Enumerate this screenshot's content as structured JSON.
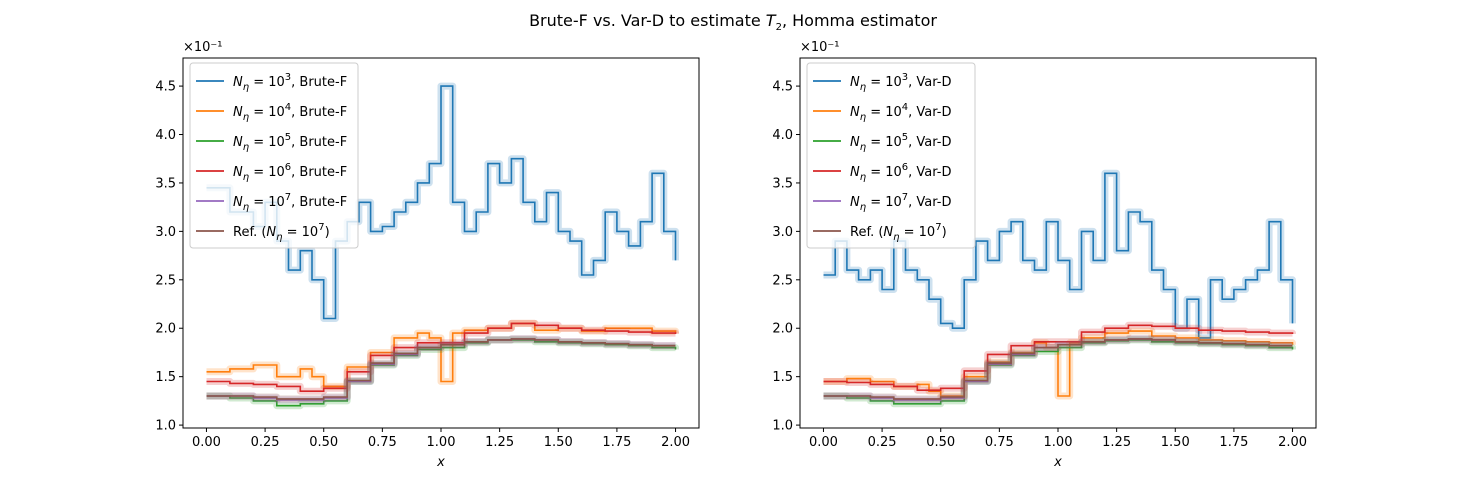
{
  "figure": {
    "title_prefix": "Brute-F vs. Var-D to estimate ",
    "title_var": "T",
    "title_sub": "2",
    "title_suffix": ", Homma estimator"
  },
  "colors": {
    "1e3": "#1f77b4",
    "1e4": "#ff7f0e",
    "1e5": "#2ca02c",
    "1e6": "#d62728",
    "1e7": "#9467bd",
    "ref": "#8c564b"
  },
  "chart_data": [
    {
      "type": "line",
      "xlabel": "x",
      "ylabel": "",
      "offset_text": "×10⁻¹",
      "xlim": [
        -0.1,
        2.1
      ],
      "ylim": [
        0.97,
        4.79
      ],
      "xticks": [
        0.0,
        0.25,
        0.5,
        0.75,
        1.0,
        1.25,
        1.5,
        1.75,
        2.0
      ],
      "xtick_labels": [
        "0.00",
        "0.25",
        "0.50",
        "0.75",
        "1.00",
        "1.25",
        "1.50",
        "1.75",
        "2.00"
      ],
      "yticks": [
        1.0,
        1.5,
        2.0,
        2.5,
        3.0,
        3.5,
        4.0,
        4.5
      ],
      "ytick_labels": [
        "1.0",
        "1.5",
        "2.0",
        "2.5",
        "3.0",
        "3.5",
        "4.0",
        "4.5"
      ],
      "legend_position": "top-left",
      "series": [
        {
          "key": "1e3",
          "legend_pre": "N",
          "legend_sub": "η",
          "legend_mid": " = 10",
          "legend_sup": "3",
          "legend_post": ", Brute-F",
          "color": "#1f77b4",
          "x": [
            0.0,
            0.1,
            0.2,
            0.25,
            0.3,
            0.35,
            0.4,
            0.45,
            0.5,
            0.55,
            0.6,
            0.65,
            0.7,
            0.75,
            0.8,
            0.85,
            0.9,
            0.95,
            1.0,
            1.05,
            1.1,
            1.15,
            1.2,
            1.25,
            1.3,
            1.35,
            1.4,
            1.45,
            1.5,
            1.55,
            1.6,
            1.65,
            1.7,
            1.75,
            1.8,
            1.85,
            1.9,
            1.95,
            2.0
          ],
          "y": [
            3.45,
            3.2,
            3.05,
            3.3,
            2.9,
            2.6,
            2.8,
            2.5,
            2.1,
            2.9,
            3.1,
            3.3,
            3.0,
            3.05,
            3.2,
            3.3,
            3.5,
            3.7,
            4.5,
            3.3,
            3.0,
            3.2,
            3.7,
            3.5,
            3.75,
            3.3,
            3.1,
            3.4,
            3.0,
            2.9,
            2.55,
            2.7,
            3.2,
            3.0,
            2.85,
            3.1,
            3.6,
            3.0,
            2.7
          ]
        },
        {
          "key": "1e4",
          "legend_pre": "N",
          "legend_sub": "η",
          "legend_mid": " = 10",
          "legend_sup": "4",
          "legend_post": ", Brute-F",
          "color": "#ff7f0e",
          "x": [
            0.0,
            0.1,
            0.2,
            0.3,
            0.4,
            0.45,
            0.5,
            0.6,
            0.7,
            0.8,
            0.9,
            0.95,
            1.0,
            1.05,
            1.1,
            1.2,
            1.3,
            1.4,
            1.5,
            1.6,
            1.7,
            1.8,
            1.9,
            2.0
          ],
          "y": [
            1.55,
            1.58,
            1.62,
            1.5,
            1.58,
            1.5,
            1.4,
            1.6,
            1.75,
            1.9,
            1.95,
            1.9,
            1.45,
            1.95,
            1.98,
            2.0,
            2.05,
            1.98,
            2.0,
            1.97,
            2.0,
            2.0,
            1.97,
            1.95
          ]
        },
        {
          "key": "1e5",
          "legend_pre": "N",
          "legend_sub": "η",
          "legend_mid": " = 10",
          "legend_sup": "5",
          "legend_post": ", Brute-F",
          "color": "#2ca02c",
          "x": [
            0.0,
            0.1,
            0.2,
            0.3,
            0.4,
            0.5,
            0.6,
            0.7,
            0.8,
            0.9,
            1.0,
            1.1,
            1.2,
            1.3,
            1.4,
            1.5,
            1.6,
            1.7,
            1.8,
            1.9,
            2.0
          ],
          "y": [
            1.3,
            1.28,
            1.25,
            1.2,
            1.22,
            1.25,
            1.45,
            1.62,
            1.72,
            1.78,
            1.8,
            1.85,
            1.88,
            1.88,
            1.86,
            1.85,
            1.84,
            1.83,
            1.82,
            1.8,
            1.78
          ]
        },
        {
          "key": "1e6",
          "legend_pre": "N",
          "legend_sub": "η",
          "legend_mid": " = 10",
          "legend_sup": "6",
          "legend_post": ", Brute-F",
          "color": "#d62728",
          "x": [
            0.0,
            0.1,
            0.2,
            0.3,
            0.4,
            0.5,
            0.6,
            0.7,
            0.8,
            0.9,
            1.0,
            1.1,
            1.2,
            1.3,
            1.4,
            1.5,
            1.6,
            1.7,
            1.8,
            1.9,
            2.0
          ],
          "y": [
            1.45,
            1.43,
            1.42,
            1.4,
            1.35,
            1.38,
            1.55,
            1.72,
            1.8,
            1.85,
            1.85,
            1.95,
            2.0,
            2.05,
            2.03,
            2.0,
            1.98,
            1.97,
            1.96,
            1.95,
            1.94
          ]
        },
        {
          "key": "1e7",
          "legend_pre": "N",
          "legend_sub": "η",
          "legend_mid": " = 10",
          "legend_sup": "7",
          "legend_post": ", Brute-F",
          "color": "#9467bd",
          "x": [
            0.0,
            0.1,
            0.2,
            0.3,
            0.4,
            0.5,
            0.6,
            0.7,
            0.8,
            0.9,
            1.0,
            1.1,
            1.2,
            1.3,
            1.4,
            1.5,
            1.6,
            1.7,
            1.8,
            1.9,
            2.0
          ],
          "y": [
            1.3,
            1.3,
            1.28,
            1.26,
            1.26,
            1.28,
            1.45,
            1.63,
            1.73,
            1.8,
            1.83,
            1.86,
            1.88,
            1.89,
            1.88,
            1.86,
            1.85,
            1.84,
            1.83,
            1.82,
            1.82
          ]
        },
        {
          "key": "ref",
          "legend_pre": "Ref. (N",
          "legend_sub": "η",
          "legend_mid": " = 10",
          "legend_sup": "7",
          "legend_post": ")",
          "color": "#8c564b",
          "x": [
            0.0,
            0.1,
            0.2,
            0.3,
            0.4,
            0.5,
            0.6,
            0.7,
            0.8,
            0.9,
            1.0,
            1.1,
            1.2,
            1.3,
            1.4,
            1.5,
            1.6,
            1.7,
            1.8,
            1.9,
            2.0
          ],
          "y": [
            1.3,
            1.3,
            1.29,
            1.27,
            1.27,
            1.29,
            1.46,
            1.64,
            1.74,
            1.8,
            1.83,
            1.86,
            1.88,
            1.89,
            1.88,
            1.86,
            1.85,
            1.84,
            1.83,
            1.82,
            1.82
          ]
        }
      ]
    },
    {
      "type": "line",
      "xlabel": "x",
      "ylabel": "",
      "offset_text": "×10⁻¹",
      "xlim": [
        -0.1,
        2.1
      ],
      "ylim": [
        0.97,
        4.79
      ],
      "xticks": [
        0.0,
        0.25,
        0.5,
        0.75,
        1.0,
        1.25,
        1.5,
        1.75,
        2.0
      ],
      "xtick_labels": [
        "0.00",
        "0.25",
        "0.50",
        "0.75",
        "1.00",
        "1.25",
        "1.50",
        "1.75",
        "2.00"
      ],
      "yticks": [
        1.0,
        1.5,
        2.0,
        2.5,
        3.0,
        3.5,
        4.0,
        4.5
      ],
      "ytick_labels": [
        "1.0",
        "1.5",
        "2.0",
        "2.5",
        "3.0",
        "3.5",
        "4.0",
        "4.5"
      ],
      "legend_position": "top-left",
      "series": [
        {
          "key": "1e3",
          "legend_pre": "N",
          "legend_sub": "η",
          "legend_mid": " = 10",
          "legend_sup": "3",
          "legend_post": ", Var-D",
          "color": "#1f77b4",
          "x": [
            0.0,
            0.05,
            0.1,
            0.15,
            0.2,
            0.25,
            0.3,
            0.35,
            0.4,
            0.45,
            0.5,
            0.55,
            0.6,
            0.65,
            0.7,
            0.75,
            0.8,
            0.85,
            0.9,
            0.95,
            1.0,
            1.05,
            1.1,
            1.15,
            1.2,
            1.25,
            1.3,
            1.35,
            1.4,
            1.45,
            1.5,
            1.55,
            1.6,
            1.65,
            1.7,
            1.75,
            1.8,
            1.85,
            1.9,
            1.95,
            2.0
          ],
          "y": [
            2.55,
            2.9,
            2.6,
            2.5,
            2.6,
            2.4,
            2.9,
            2.6,
            2.5,
            2.3,
            2.05,
            2.0,
            2.5,
            2.9,
            2.7,
            3.0,
            3.1,
            2.7,
            2.6,
            3.1,
            2.7,
            2.4,
            3.0,
            2.7,
            3.6,
            2.8,
            3.2,
            3.1,
            2.6,
            2.4,
            2.0,
            2.3,
            1.9,
            2.5,
            2.3,
            2.4,
            2.5,
            2.6,
            3.1,
            2.5,
            2.05
          ]
        },
        {
          "key": "1e4",
          "legend_pre": "N",
          "legend_sub": "η",
          "legend_mid": " = 10",
          "legend_sup": "4",
          "legend_post": ", Var-D",
          "color": "#ff7f0e",
          "x": [
            0.0,
            0.1,
            0.2,
            0.3,
            0.4,
            0.45,
            0.5,
            0.6,
            0.7,
            0.8,
            0.9,
            0.95,
            1.0,
            1.05,
            1.1,
            1.2,
            1.3,
            1.4,
            1.5,
            1.6,
            1.7,
            1.8,
            1.9,
            2.0
          ],
          "y": [
            1.45,
            1.48,
            1.45,
            1.4,
            1.42,
            1.35,
            1.3,
            1.5,
            1.65,
            1.75,
            1.85,
            1.8,
            1.3,
            1.85,
            1.9,
            1.95,
            1.97,
            1.92,
            1.9,
            1.88,
            1.87,
            1.86,
            1.85,
            1.83
          ]
        },
        {
          "key": "1e5",
          "legend_pre": "N",
          "legend_sub": "η",
          "legend_mid": " = 10",
          "legend_sup": "5",
          "legend_post": ", Var-D",
          "color": "#2ca02c",
          "x": [
            0.0,
            0.1,
            0.2,
            0.3,
            0.4,
            0.5,
            0.6,
            0.7,
            0.8,
            0.9,
            1.0,
            1.1,
            1.2,
            1.3,
            1.4,
            1.5,
            1.6,
            1.7,
            1.8,
            1.9,
            2.0
          ],
          "y": [
            1.3,
            1.28,
            1.25,
            1.22,
            1.22,
            1.25,
            1.45,
            1.62,
            1.72,
            1.76,
            1.8,
            1.85,
            1.87,
            1.88,
            1.86,
            1.85,
            1.84,
            1.83,
            1.82,
            1.8,
            1.78
          ]
        },
        {
          "key": "1e6",
          "legend_pre": "N",
          "legend_sub": "η",
          "legend_mid": " = 10",
          "legend_sup": "6",
          "legend_post": ", Var-D",
          "color": "#d62728",
          "x": [
            0.0,
            0.1,
            0.2,
            0.3,
            0.4,
            0.5,
            0.6,
            0.7,
            0.8,
            0.9,
            1.0,
            1.1,
            1.2,
            1.3,
            1.4,
            1.5,
            1.6,
            1.7,
            1.8,
            1.9,
            2.0
          ],
          "y": [
            1.45,
            1.44,
            1.42,
            1.4,
            1.36,
            1.38,
            1.56,
            1.73,
            1.82,
            1.86,
            1.86,
            1.96,
            2.0,
            2.03,
            2.02,
            2.0,
            1.98,
            1.97,
            1.96,
            1.95,
            1.94
          ]
        },
        {
          "key": "1e7",
          "legend_pre": "N",
          "legend_sub": "η",
          "legend_mid": " = 10",
          "legend_sup": "7",
          "legend_post": ", Var-D",
          "color": "#9467bd",
          "x": [
            0.0,
            0.1,
            0.2,
            0.3,
            0.4,
            0.5,
            0.6,
            0.7,
            0.8,
            0.9,
            1.0,
            1.1,
            1.2,
            1.3,
            1.4,
            1.5,
            1.6,
            1.7,
            1.8,
            1.9,
            2.0
          ],
          "y": [
            1.3,
            1.3,
            1.28,
            1.26,
            1.26,
            1.28,
            1.45,
            1.63,
            1.73,
            1.8,
            1.83,
            1.86,
            1.88,
            1.89,
            1.88,
            1.86,
            1.85,
            1.84,
            1.83,
            1.82,
            1.82
          ]
        },
        {
          "key": "ref",
          "legend_pre": "Ref. (N",
          "legend_sub": "η",
          "legend_mid": " = 10",
          "legend_sup": "7",
          "legend_post": ")",
          "color": "#8c564b",
          "x": [
            0.0,
            0.1,
            0.2,
            0.3,
            0.4,
            0.5,
            0.6,
            0.7,
            0.8,
            0.9,
            1.0,
            1.1,
            1.2,
            1.3,
            1.4,
            1.5,
            1.6,
            1.7,
            1.8,
            1.9,
            2.0
          ],
          "y": [
            1.3,
            1.3,
            1.29,
            1.27,
            1.27,
            1.29,
            1.46,
            1.64,
            1.74,
            1.8,
            1.83,
            1.86,
            1.88,
            1.89,
            1.88,
            1.86,
            1.85,
            1.84,
            1.83,
            1.82,
            1.82
          ]
        }
      ]
    }
  ]
}
